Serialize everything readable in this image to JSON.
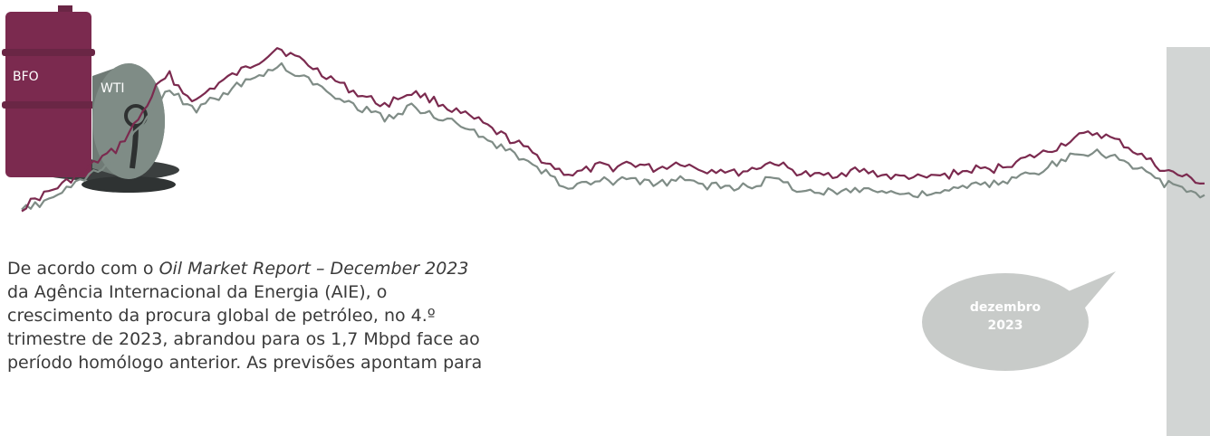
{
  "barrels": {
    "bfo_label": "BFO",
    "wti_label": "WTI"
  },
  "bubble": {
    "line1": "dezembro",
    "line2": "2023"
  },
  "paragraph": {
    "part1": "De acordo com o ",
    "report_title": "Oil Market Report – December 2023",
    "part2": " da Agência Internacional da Energia (AIE), o crescimento da procura global de petróleo, no 4.º trimestre de 2023, abrandou para os 1,7 Mbpd face ao período homólogo anterior. As previsões apontam para"
  },
  "colors": {
    "bfo": "#7b2a4f",
    "wti": "#7f8c86",
    "highlight_band": "#d2d5d4",
    "bubble": "#c8cbc9"
  },
  "chart_data": {
    "type": "line",
    "title": "",
    "xlabel": "",
    "ylabel": "",
    "series": [
      {
        "name": "BFO",
        "values": [
          20,
          26,
          31,
          36,
          42,
          48,
          55,
          60,
          72,
          86,
          103,
          112,
          100,
          94,
          102,
          108,
          113,
          118,
          124,
          131,
          126,
          121,
          115,
          110,
          104,
          99,
          95,
          91,
          96,
          100,
          97,
          93,
          88,
          84,
          80,
          74,
          69,
          64,
          58,
          52,
          46,
          43,
          46,
          49,
          48,
          51,
          50,
          47,
          49,
          52,
          48,
          46,
          47,
          44,
          46,
          49,
          52,
          47,
          44,
          42,
          43,
          44,
          46,
          45,
          43,
          41,
          42,
          40,
          42,
          43,
          45,
          47,
          46,
          49,
          52,
          55,
          58,
          62,
          67,
          70,
          72,
          68,
          64,
          58,
          52,
          46,
          43,
          40,
          37
        ]
      },
      {
        "name": "WTI",
        "values": [
          18,
          22,
          26,
          31,
          36,
          42,
          47,
          53,
          66,
          78,
          94,
          103,
          93,
          87,
          94,
          99,
          104,
          108,
          113,
          119,
          115,
          110,
          105,
          100,
          95,
          90,
          86,
          82,
          86,
          90,
          87,
          83,
          79,
          75,
          71,
          65,
          60,
          55,
          50,
          44,
          38,
          34,
          37,
          39,
          38,
          40,
          39,
          36,
          38,
          41,
          37,
          35,
          36,
          33,
          35,
          38,
          40,
          36,
          33,
          31,
          31,
          32,
          34,
          33,
          32,
          30,
          30,
          29,
          31,
          32,
          34,
          36,
          36,
          38,
          41,
          44,
          47,
          51,
          55,
          58,
          60,
          56,
          52,
          47,
          42,
          37,
          34,
          31,
          29
        ]
      }
    ]
  }
}
